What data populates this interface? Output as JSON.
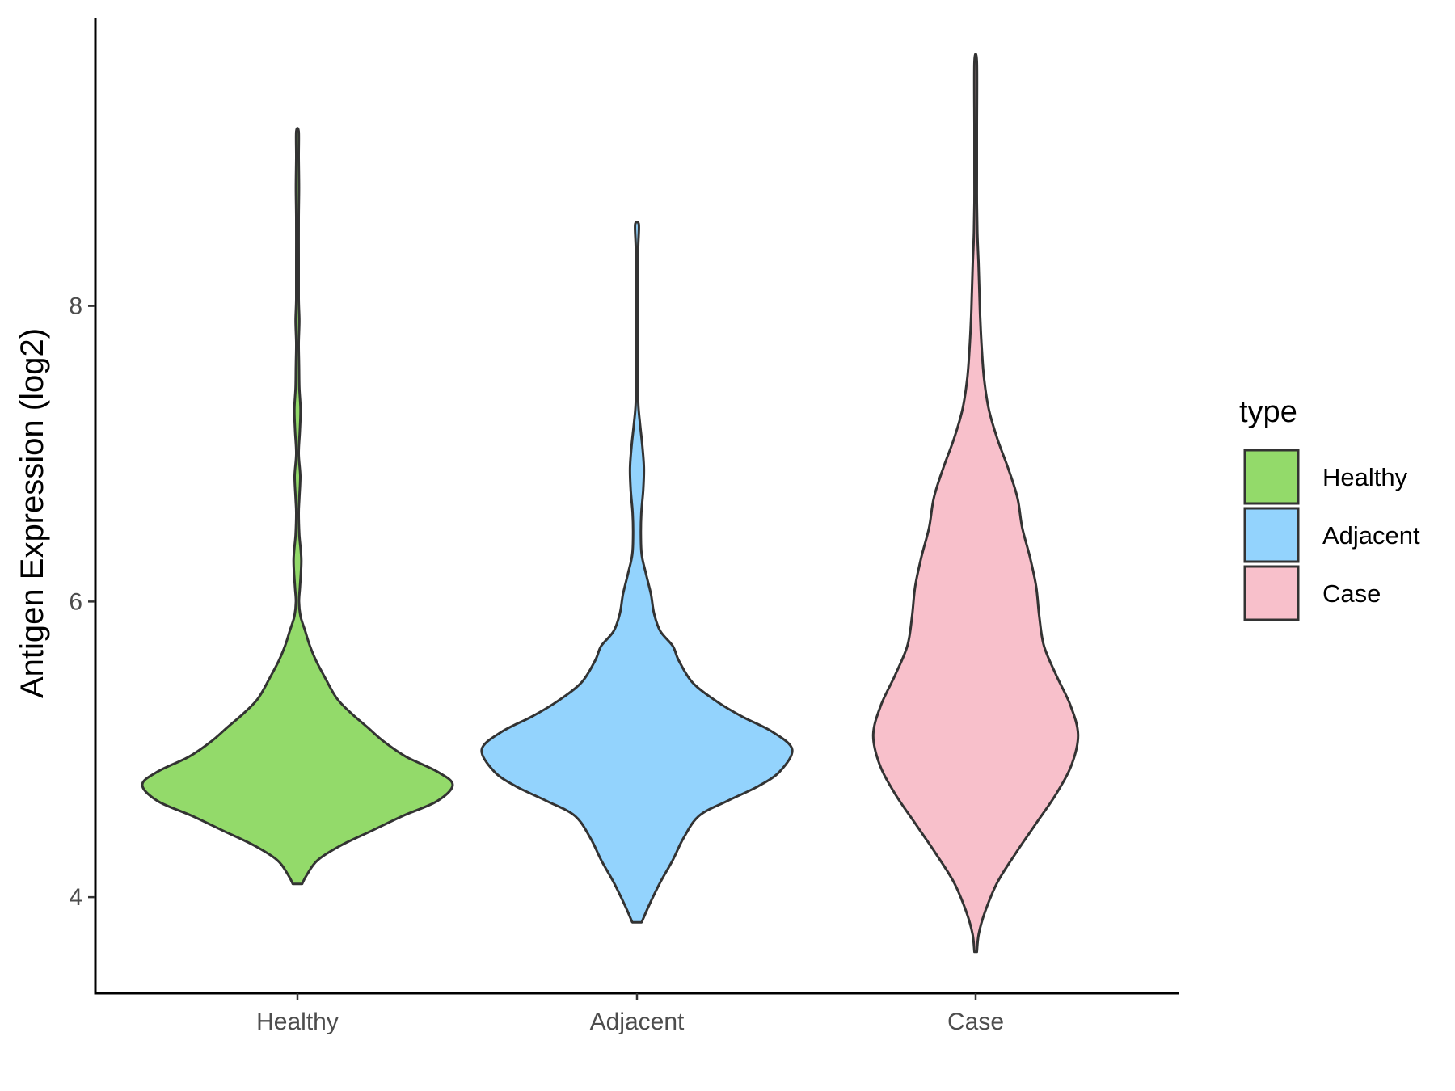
{
  "chart_data": {
    "type": "violin",
    "title": "",
    "xlabel": "",
    "ylabel": "Antigen Expression (log2)",
    "categories": [
      "Healthy",
      "Adjacent",
      "Case"
    ],
    "yticks": [
      4,
      6,
      8
    ],
    "ylim": [
      3.35,
      9.95
    ],
    "grid": false,
    "legend": {
      "title": "type",
      "position": "right",
      "entries": [
        "Healthy",
        "Adjacent",
        "Case"
      ]
    },
    "colors": {
      "Healthy": "#93da6a",
      "Adjacent": "#93d3fd",
      "Case": "#f8c0cb",
      "outline": "#333333"
    },
    "series": [
      {
        "category": "Healthy",
        "min": 4.09,
        "max": 9.18,
        "density_profile": [
          [
            4.09,
            0.03
          ],
          [
            4.15,
            0.06
          ],
          [
            4.25,
            0.13
          ],
          [
            4.35,
            0.28
          ],
          [
            4.45,
            0.48
          ],
          [
            4.55,
            0.68
          ],
          [
            4.65,
            0.9
          ],
          [
            4.76,
            1.0
          ],
          [
            4.85,
            0.9
          ],
          [
            4.95,
            0.7
          ],
          [
            5.05,
            0.56
          ],
          [
            5.15,
            0.45
          ],
          [
            5.25,
            0.34
          ],
          [
            5.35,
            0.25
          ],
          [
            5.5,
            0.17
          ],
          [
            5.6,
            0.12
          ],
          [
            5.7,
            0.08
          ],
          [
            5.8,
            0.05
          ],
          [
            5.9,
            0.02
          ],
          [
            6.0,
            0.01
          ],
          [
            6.1,
            0.016
          ],
          [
            6.28,
            0.025
          ],
          [
            6.45,
            0.012
          ],
          [
            6.6,
            0.006
          ],
          [
            6.7,
            0.012
          ],
          [
            6.85,
            0.018
          ],
          [
            7.0,
            0.008
          ],
          [
            7.15,
            0.015
          ],
          [
            7.3,
            0.02
          ],
          [
            7.45,
            0.012
          ],
          [
            7.6,
            0.01
          ],
          [
            7.75,
            0.006
          ],
          [
            7.9,
            0.012
          ],
          [
            8.05,
            0.004
          ],
          [
            8.3,
            0.002
          ],
          [
            8.6,
            0.006
          ],
          [
            8.8,
            0.01
          ],
          [
            9.0,
            0.004
          ],
          [
            9.18,
            0.005
          ]
        ]
      },
      {
        "category": "Adjacent",
        "min": 3.83,
        "max": 8.55,
        "density_profile": [
          [
            3.83,
            0.03
          ],
          [
            3.95,
            0.08
          ],
          [
            4.1,
            0.15
          ],
          [
            4.25,
            0.23
          ],
          [
            4.4,
            0.3
          ],
          [
            4.55,
            0.4
          ],
          [
            4.65,
            0.58
          ],
          [
            4.75,
            0.78
          ],
          [
            4.85,
            0.92
          ],
          [
            5.0,
            1.0
          ],
          [
            5.12,
            0.87
          ],
          [
            5.22,
            0.68
          ],
          [
            5.32,
            0.52
          ],
          [
            5.45,
            0.36
          ],
          [
            5.6,
            0.27
          ],
          [
            5.7,
            0.23
          ],
          [
            5.8,
            0.15
          ],
          [
            5.92,
            0.11
          ],
          [
            6.05,
            0.09
          ],
          [
            6.2,
            0.055
          ],
          [
            6.32,
            0.03
          ],
          [
            6.45,
            0.025
          ],
          [
            6.6,
            0.028
          ],
          [
            6.75,
            0.04
          ],
          [
            6.9,
            0.045
          ],
          [
            7.05,
            0.035
          ],
          [
            7.2,
            0.02
          ],
          [
            7.35,
            0.008
          ],
          [
            7.6,
            0.005
          ],
          [
            7.9,
            0.005
          ],
          [
            8.2,
            0.006
          ],
          [
            8.4,
            0.008
          ],
          [
            8.55,
            0.012
          ]
        ]
      },
      {
        "category": "Case",
        "min": 3.63,
        "max": 9.65,
        "density_profile": [
          [
            3.63,
            0.0
          ],
          [
            3.75,
            0.02
          ],
          [
            3.9,
            0.06
          ],
          [
            4.1,
            0.14
          ],
          [
            4.3,
            0.26
          ],
          [
            4.5,
            0.39
          ],
          [
            4.7,
            0.52
          ],
          [
            4.9,
            0.62
          ],
          [
            5.1,
            0.66
          ],
          [
            5.3,
            0.61
          ],
          [
            5.5,
            0.52
          ],
          [
            5.7,
            0.44
          ],
          [
            5.9,
            0.41
          ],
          [
            6.1,
            0.39
          ],
          [
            6.3,
            0.35
          ],
          [
            6.5,
            0.3
          ],
          [
            6.7,
            0.27
          ],
          [
            6.9,
            0.21
          ],
          [
            7.1,
            0.14
          ],
          [
            7.3,
            0.085
          ],
          [
            7.5,
            0.055
          ],
          [
            7.7,
            0.04
          ],
          [
            7.9,
            0.03
          ],
          [
            8.1,
            0.024
          ],
          [
            8.3,
            0.018
          ],
          [
            8.5,
            0.011
          ],
          [
            8.7,
            0.005
          ],
          [
            8.9,
            0.002
          ],
          [
            9.2,
            0.0
          ],
          [
            9.65,
            0.0
          ]
        ]
      }
    ]
  }
}
